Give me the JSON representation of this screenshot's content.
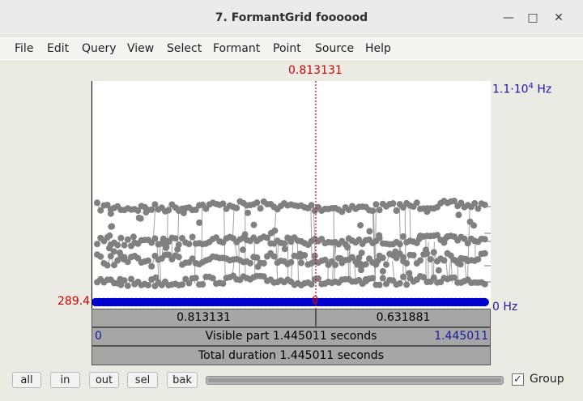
{
  "window": {
    "title": "7. FormantGrid foooood",
    "minimize_icon": "minimize-icon",
    "maximize_icon": "maximize-icon",
    "close_icon": "close-icon"
  },
  "menu": [
    "File",
    "Edit",
    "Query",
    "View",
    "Select",
    "Formant",
    "Point",
    "Source",
    "Help"
  ],
  "plot": {
    "cursor_time": "0.813131",
    "y_top_label": "1.1·10",
    "y_top_exp": "4",
    "y_top_unit": " Hz",
    "y_bottom_label": "0 Hz",
    "left_value": "289.4",
    "cursor_zero": "0",
    "colors": {
      "points": "#808080",
      "bandwidth": "#0000cc",
      "cursor": "#cc0000",
      "frame": "#000000"
    }
  },
  "bars": {
    "left_segment": "0.813131",
    "right_segment": "0.631881",
    "visible_start": "0",
    "visible_label": "Visible part 1.445011 seconds",
    "visible_end": "1.445011",
    "total_label": "Total duration 1.445011 seconds"
  },
  "bottom": {
    "buttons": [
      "all",
      "in",
      "out",
      "sel",
      "bak"
    ],
    "group_label": "Group",
    "group_checked": true
  }
}
